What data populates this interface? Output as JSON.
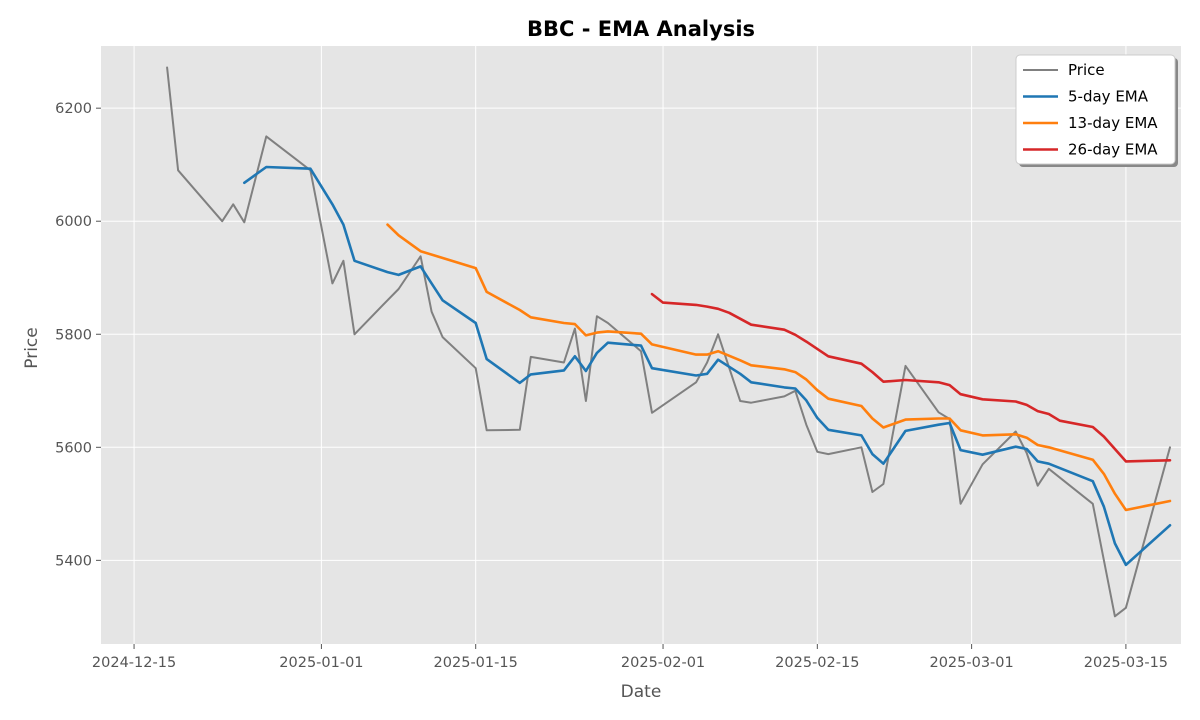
{
  "chart_data": {
    "type": "line",
    "title": "BBC - EMA Analysis",
    "xlabel": "Date",
    "ylabel": "Price",
    "x_range": [
      "2024-12-12",
      "2025-03-20"
    ],
    "ylim": [
      5252,
      6310
    ],
    "grid": true,
    "legend_position": "top-right",
    "x_ticks": [
      "2024-12-15",
      "2025-01-01",
      "2025-01-15",
      "2025-02-01",
      "2025-02-15",
      "2025-03-01",
      "2025-03-15"
    ],
    "y_ticks": [
      5400,
      5600,
      5800,
      6000,
      6200
    ],
    "series": [
      {
        "name": "Price",
        "color": "#808080",
        "points": [
          [
            "2024-12-18",
            6272
          ],
          [
            "2024-12-19",
            6090
          ],
          [
            "2024-12-23",
            6000
          ],
          [
            "2024-12-24",
            6030
          ],
          [
            "2024-12-25",
            5998
          ],
          [
            "2024-12-27",
            6150
          ],
          [
            "2024-12-31",
            6090
          ],
          [
            "2025-01-02",
            5890
          ],
          [
            "2025-01-03",
            5930
          ],
          [
            "2025-01-04",
            5800
          ],
          [
            "2025-01-07",
            5860
          ],
          [
            "2025-01-08",
            5880
          ],
          [
            "2025-01-10",
            5938
          ],
          [
            "2025-01-11",
            5840
          ],
          [
            "2025-01-12",
            5795
          ],
          [
            "2025-01-15",
            5740
          ],
          [
            "2025-01-16",
            5630
          ],
          [
            "2025-01-19",
            5631
          ],
          [
            "2025-01-20",
            5760
          ],
          [
            "2025-01-23",
            5750
          ],
          [
            "2025-01-24",
            5810
          ],
          [
            "2025-01-25",
            5682
          ],
          [
            "2025-01-26",
            5832
          ],
          [
            "2025-01-27",
            5820
          ],
          [
            "2025-01-30",
            5770
          ],
          [
            "2025-01-31",
            5661
          ],
          [
            "2025-02-04",
            5715
          ],
          [
            "2025-02-05",
            5750
          ],
          [
            "2025-02-06",
            5800
          ],
          [
            "2025-02-08",
            5682
          ],
          [
            "2025-02-09",
            5679
          ],
          [
            "2025-02-12",
            5690
          ],
          [
            "2025-02-13",
            5700
          ],
          [
            "2025-02-14",
            5640
          ],
          [
            "2025-02-15",
            5592
          ],
          [
            "2025-02-16",
            5588
          ],
          [
            "2025-02-19",
            5600
          ],
          [
            "2025-02-20",
            5521
          ],
          [
            "2025-02-21",
            5535
          ],
          [
            "2025-02-23",
            5744
          ],
          [
            "2025-02-26",
            5662
          ],
          [
            "2025-02-27",
            5650
          ],
          [
            "2025-02-28",
            5500
          ],
          [
            "2025-03-02",
            5570
          ],
          [
            "2025-03-05",
            5628
          ],
          [
            "2025-03-06",
            5590
          ],
          [
            "2025-03-07",
            5532
          ],
          [
            "2025-03-08",
            5562
          ],
          [
            "2025-03-12",
            5500
          ],
          [
            "2025-03-14",
            5301
          ],
          [
            "2025-03-15",
            5316
          ],
          [
            "2025-03-19",
            5600
          ]
        ]
      },
      {
        "name": "5-day EMA",
        "color": "#1f77b4",
        "points": [
          [
            "2024-12-25",
            6068
          ],
          [
            "2024-12-27",
            6096
          ],
          [
            "2024-12-31",
            6093
          ],
          [
            "2025-01-02",
            6030
          ],
          [
            "2025-01-03",
            5994
          ],
          [
            "2025-01-04",
            5930
          ],
          [
            "2025-01-07",
            5910
          ],
          [
            "2025-01-08",
            5905
          ],
          [
            "2025-01-10",
            5920
          ],
          [
            "2025-01-11",
            5890
          ],
          [
            "2025-01-12",
            5860
          ],
          [
            "2025-01-15",
            5820
          ],
          [
            "2025-01-16",
            5756
          ],
          [
            "2025-01-19",
            5714
          ],
          [
            "2025-01-20",
            5729
          ],
          [
            "2025-01-23",
            5736
          ],
          [
            "2025-01-24",
            5761
          ],
          [
            "2025-01-25",
            5735
          ],
          [
            "2025-01-26",
            5767
          ],
          [
            "2025-01-27",
            5785
          ],
          [
            "2025-01-30",
            5780
          ],
          [
            "2025-01-31",
            5740
          ],
          [
            "2025-02-04",
            5727
          ],
          [
            "2025-02-05",
            5730
          ],
          [
            "2025-02-06",
            5755
          ],
          [
            "2025-02-08",
            5730
          ],
          [
            "2025-02-09",
            5715
          ],
          [
            "2025-02-12",
            5706
          ],
          [
            "2025-02-13",
            5704
          ],
          [
            "2025-02-14",
            5683
          ],
          [
            "2025-02-15",
            5652
          ],
          [
            "2025-02-16",
            5631
          ],
          [
            "2025-02-19",
            5621
          ],
          [
            "2025-02-20",
            5588
          ],
          [
            "2025-02-21",
            5571
          ],
          [
            "2025-02-23",
            5629
          ],
          [
            "2025-02-26",
            5640
          ],
          [
            "2025-02-27",
            5643
          ],
          [
            "2025-02-28",
            5595
          ],
          [
            "2025-03-02",
            5587
          ],
          [
            "2025-03-05",
            5601
          ],
          [
            "2025-03-06",
            5597
          ],
          [
            "2025-03-07",
            5575
          ],
          [
            "2025-03-08",
            5571
          ],
          [
            "2025-03-12",
            5540
          ],
          [
            "2025-03-13",
            5495
          ],
          [
            "2025-03-14",
            5430
          ],
          [
            "2025-03-15",
            5392
          ],
          [
            "2025-03-19",
            5462
          ]
        ]
      },
      {
        "name": "13-day EMA",
        "color": "#ff7f0e",
        "points": [
          [
            "2025-01-07",
            5994
          ],
          [
            "2025-01-08",
            5975
          ],
          [
            "2025-01-10",
            5947
          ],
          [
            "2025-01-15",
            5917
          ],
          [
            "2025-01-16",
            5875
          ],
          [
            "2025-01-19",
            5843
          ],
          [
            "2025-01-20",
            5830
          ],
          [
            "2025-01-23",
            5820
          ],
          [
            "2025-01-24",
            5818
          ],
          [
            "2025-01-25",
            5798
          ],
          [
            "2025-01-26",
            5803
          ],
          [
            "2025-01-27",
            5805
          ],
          [
            "2025-01-30",
            5801
          ],
          [
            "2025-01-31",
            5782
          ],
          [
            "2025-02-04",
            5764
          ],
          [
            "2025-02-05",
            5764
          ],
          [
            "2025-02-06",
            5770
          ],
          [
            "2025-02-08",
            5754
          ],
          [
            "2025-02-09",
            5745
          ],
          [
            "2025-02-12",
            5738
          ],
          [
            "2025-02-13",
            5733
          ],
          [
            "2025-02-14",
            5720
          ],
          [
            "2025-02-15",
            5701
          ],
          [
            "2025-02-16",
            5686
          ],
          [
            "2025-02-19",
            5673
          ],
          [
            "2025-02-20",
            5651
          ],
          [
            "2025-02-21",
            5635
          ],
          [
            "2025-02-23",
            5649
          ],
          [
            "2025-02-26",
            5651
          ],
          [
            "2025-02-27",
            5651
          ],
          [
            "2025-02-28",
            5630
          ],
          [
            "2025-03-02",
            5621
          ],
          [
            "2025-03-05",
            5623
          ],
          [
            "2025-03-06",
            5617
          ],
          [
            "2025-03-07",
            5604
          ],
          [
            "2025-03-08",
            5600
          ],
          [
            "2025-03-12",
            5578
          ],
          [
            "2025-03-13",
            5553
          ],
          [
            "2025-03-14",
            5518
          ],
          [
            "2025-03-15",
            5489
          ],
          [
            "2025-03-19",
            5505
          ]
        ]
      },
      {
        "name": "26-day EMA",
        "color": "#d62728",
        "points": [
          [
            "2025-01-31",
            5871
          ],
          [
            "2025-02-01",
            5856
          ],
          [
            "2025-02-04",
            5852
          ],
          [
            "2025-02-05",
            5849
          ],
          [
            "2025-02-06",
            5845
          ],
          [
            "2025-02-07",
            5838
          ],
          [
            "2025-02-09",
            5817
          ],
          [
            "2025-02-12",
            5808
          ],
          [
            "2025-02-13",
            5799
          ],
          [
            "2025-02-14",
            5787
          ],
          [
            "2025-02-16",
            5761
          ],
          [
            "2025-02-19",
            5748
          ],
          [
            "2025-02-20",
            5733
          ],
          [
            "2025-02-21",
            5716
          ],
          [
            "2025-02-23",
            5719
          ],
          [
            "2025-02-26",
            5715
          ],
          [
            "2025-02-27",
            5710
          ],
          [
            "2025-02-28",
            5694
          ],
          [
            "2025-03-02",
            5685
          ],
          [
            "2025-03-05",
            5681
          ],
          [
            "2025-03-06",
            5675
          ],
          [
            "2025-03-07",
            5664
          ],
          [
            "2025-03-08",
            5659
          ],
          [
            "2025-03-09",
            5647
          ],
          [
            "2025-03-12",
            5636
          ],
          [
            "2025-03-13",
            5619
          ],
          [
            "2025-03-14",
            5597
          ],
          [
            "2025-03-15",
            5575
          ],
          [
            "2025-03-19",
            5577
          ]
        ]
      }
    ]
  }
}
